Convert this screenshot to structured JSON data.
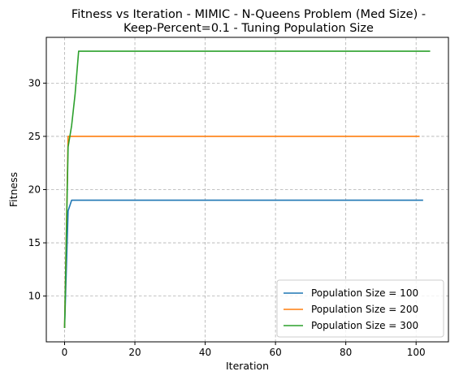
{
  "chart_data": {
    "type": "line",
    "title_lines": [
      "Fitness vs Iteration - MIMIC - N-Queens Problem (Med Size) -",
      "Keep-Percent=0.1 - Tuning Population Size"
    ],
    "xlabel": "Iteration",
    "ylabel": "Fitness",
    "xlim": [
      -5.2,
      109.2
    ],
    "ylim": [
      5.7,
      34.3
    ],
    "xticks": [
      0,
      20,
      40,
      60,
      80,
      100
    ],
    "yticks": [
      10,
      15,
      20,
      25,
      30
    ],
    "grid": true,
    "legend_position": "lower-right",
    "series": [
      {
        "name": "Population Size = 100",
        "color": "#1f77b4",
        "x": [
          0,
          1,
          2,
          102
        ],
        "y": [
          7,
          18,
          19,
          19
        ]
      },
      {
        "name": "Population Size = 200",
        "color": "#ff7f0e",
        "x": [
          0,
          1,
          101
        ],
        "y": [
          7,
          25,
          25
        ]
      },
      {
        "name": "Population Size = 300",
        "color": "#2ca02c",
        "x": [
          0,
          1,
          2,
          3,
          4,
          104
        ],
        "y": [
          7,
          24,
          26,
          29,
          33,
          33
        ]
      }
    ]
  }
}
